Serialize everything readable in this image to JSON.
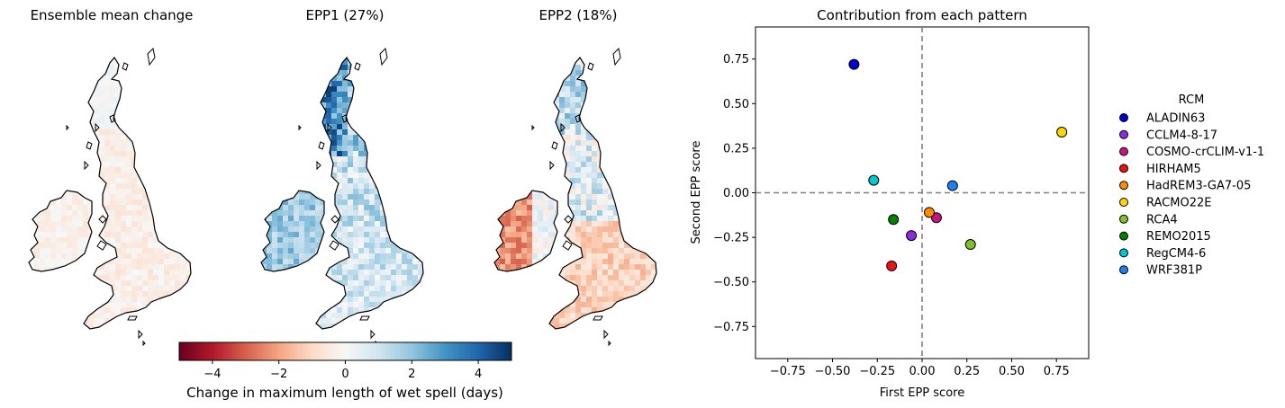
{
  "maps": {
    "panels": [
      {
        "title": "Ensemble mean change",
        "pattern": "mean"
      },
      {
        "title": "EPP1 (27%)",
        "pattern": "epp1"
      },
      {
        "title": "EPP2 (18%)",
        "pattern": "epp2"
      }
    ],
    "colorbar": {
      "label": "Change in maximum length of wet spell (days)",
      "range": [
        -5,
        5
      ],
      "ticks": [
        "−4",
        "−2",
        "0",
        "2",
        "4"
      ],
      "tick_values": [
        -4,
        -2,
        0,
        2,
        4
      ],
      "colormap": "RdBu",
      "stops": [
        "#67001f",
        "#b2182b",
        "#d6604d",
        "#f4a582",
        "#fddbc7",
        "#f7f7f7",
        "#d1e5f0",
        "#92c5de",
        "#4393c3",
        "#2166ac",
        "#053061"
      ]
    }
  },
  "chart_data": {
    "type": "scatter",
    "title": "Contribution from each pattern",
    "xlabel": "First EPP score",
    "ylabel": "Second EPP score",
    "xlim": [
      -0.93,
      0.93
    ],
    "ylim": [
      -0.93,
      0.93
    ],
    "xticks": [
      -0.75,
      -0.5,
      -0.25,
      0.0,
      0.25,
      0.5,
      0.75
    ],
    "yticks": [
      -0.75,
      -0.5,
      -0.25,
      0.0,
      0.25,
      0.5,
      0.75
    ],
    "xtick_labels": [
      "−0.75",
      "−0.50",
      "−0.25",
      "0.00",
      "0.25",
      "0.50",
      "0.75"
    ],
    "ytick_labels": [
      "−0.75",
      "−0.50",
      "−0.25",
      "0.00",
      "0.25",
      "0.50",
      "0.75"
    ],
    "reference_lines": {
      "x": 0,
      "y": 0,
      "style": "dashed",
      "color": "#808080"
    },
    "legend": {
      "title": "RCM",
      "position": "right-outside"
    },
    "series": [
      {
        "name": "ALADIN63",
        "color": "#0000cc",
        "x": -0.38,
        "y": 0.72
      },
      {
        "name": "CCLM4-8-17",
        "color": "#8a2be2",
        "x": -0.06,
        "y": -0.24
      },
      {
        "name": "COSMO-crCLIM-v1-1",
        "color": "#c71585",
        "x": 0.08,
        "y": -0.14
      },
      {
        "name": "HIRHAM5",
        "color": "#ee1111",
        "x": -0.17,
        "y": -0.41
      },
      {
        "name": "HadREM3-GA7-05",
        "color": "#ff8c00",
        "x": 0.04,
        "y": -0.11
      },
      {
        "name": "RACMO22E",
        "color": "#ffd700",
        "x": 0.78,
        "y": 0.34
      },
      {
        "name": "RCA4",
        "color": "#7fbf2a",
        "x": 0.27,
        "y": -0.29
      },
      {
        "name": "REMO2015",
        "color": "#008000",
        "x": -0.16,
        "y": -0.15
      },
      {
        "name": "RegCM4-6",
        "color": "#00c8d0",
        "x": -0.27,
        "y": 0.07
      },
      {
        "name": "WRF381P",
        "color": "#1e7ff0",
        "x": 0.17,
        "y": 0.04
      }
    ]
  }
}
